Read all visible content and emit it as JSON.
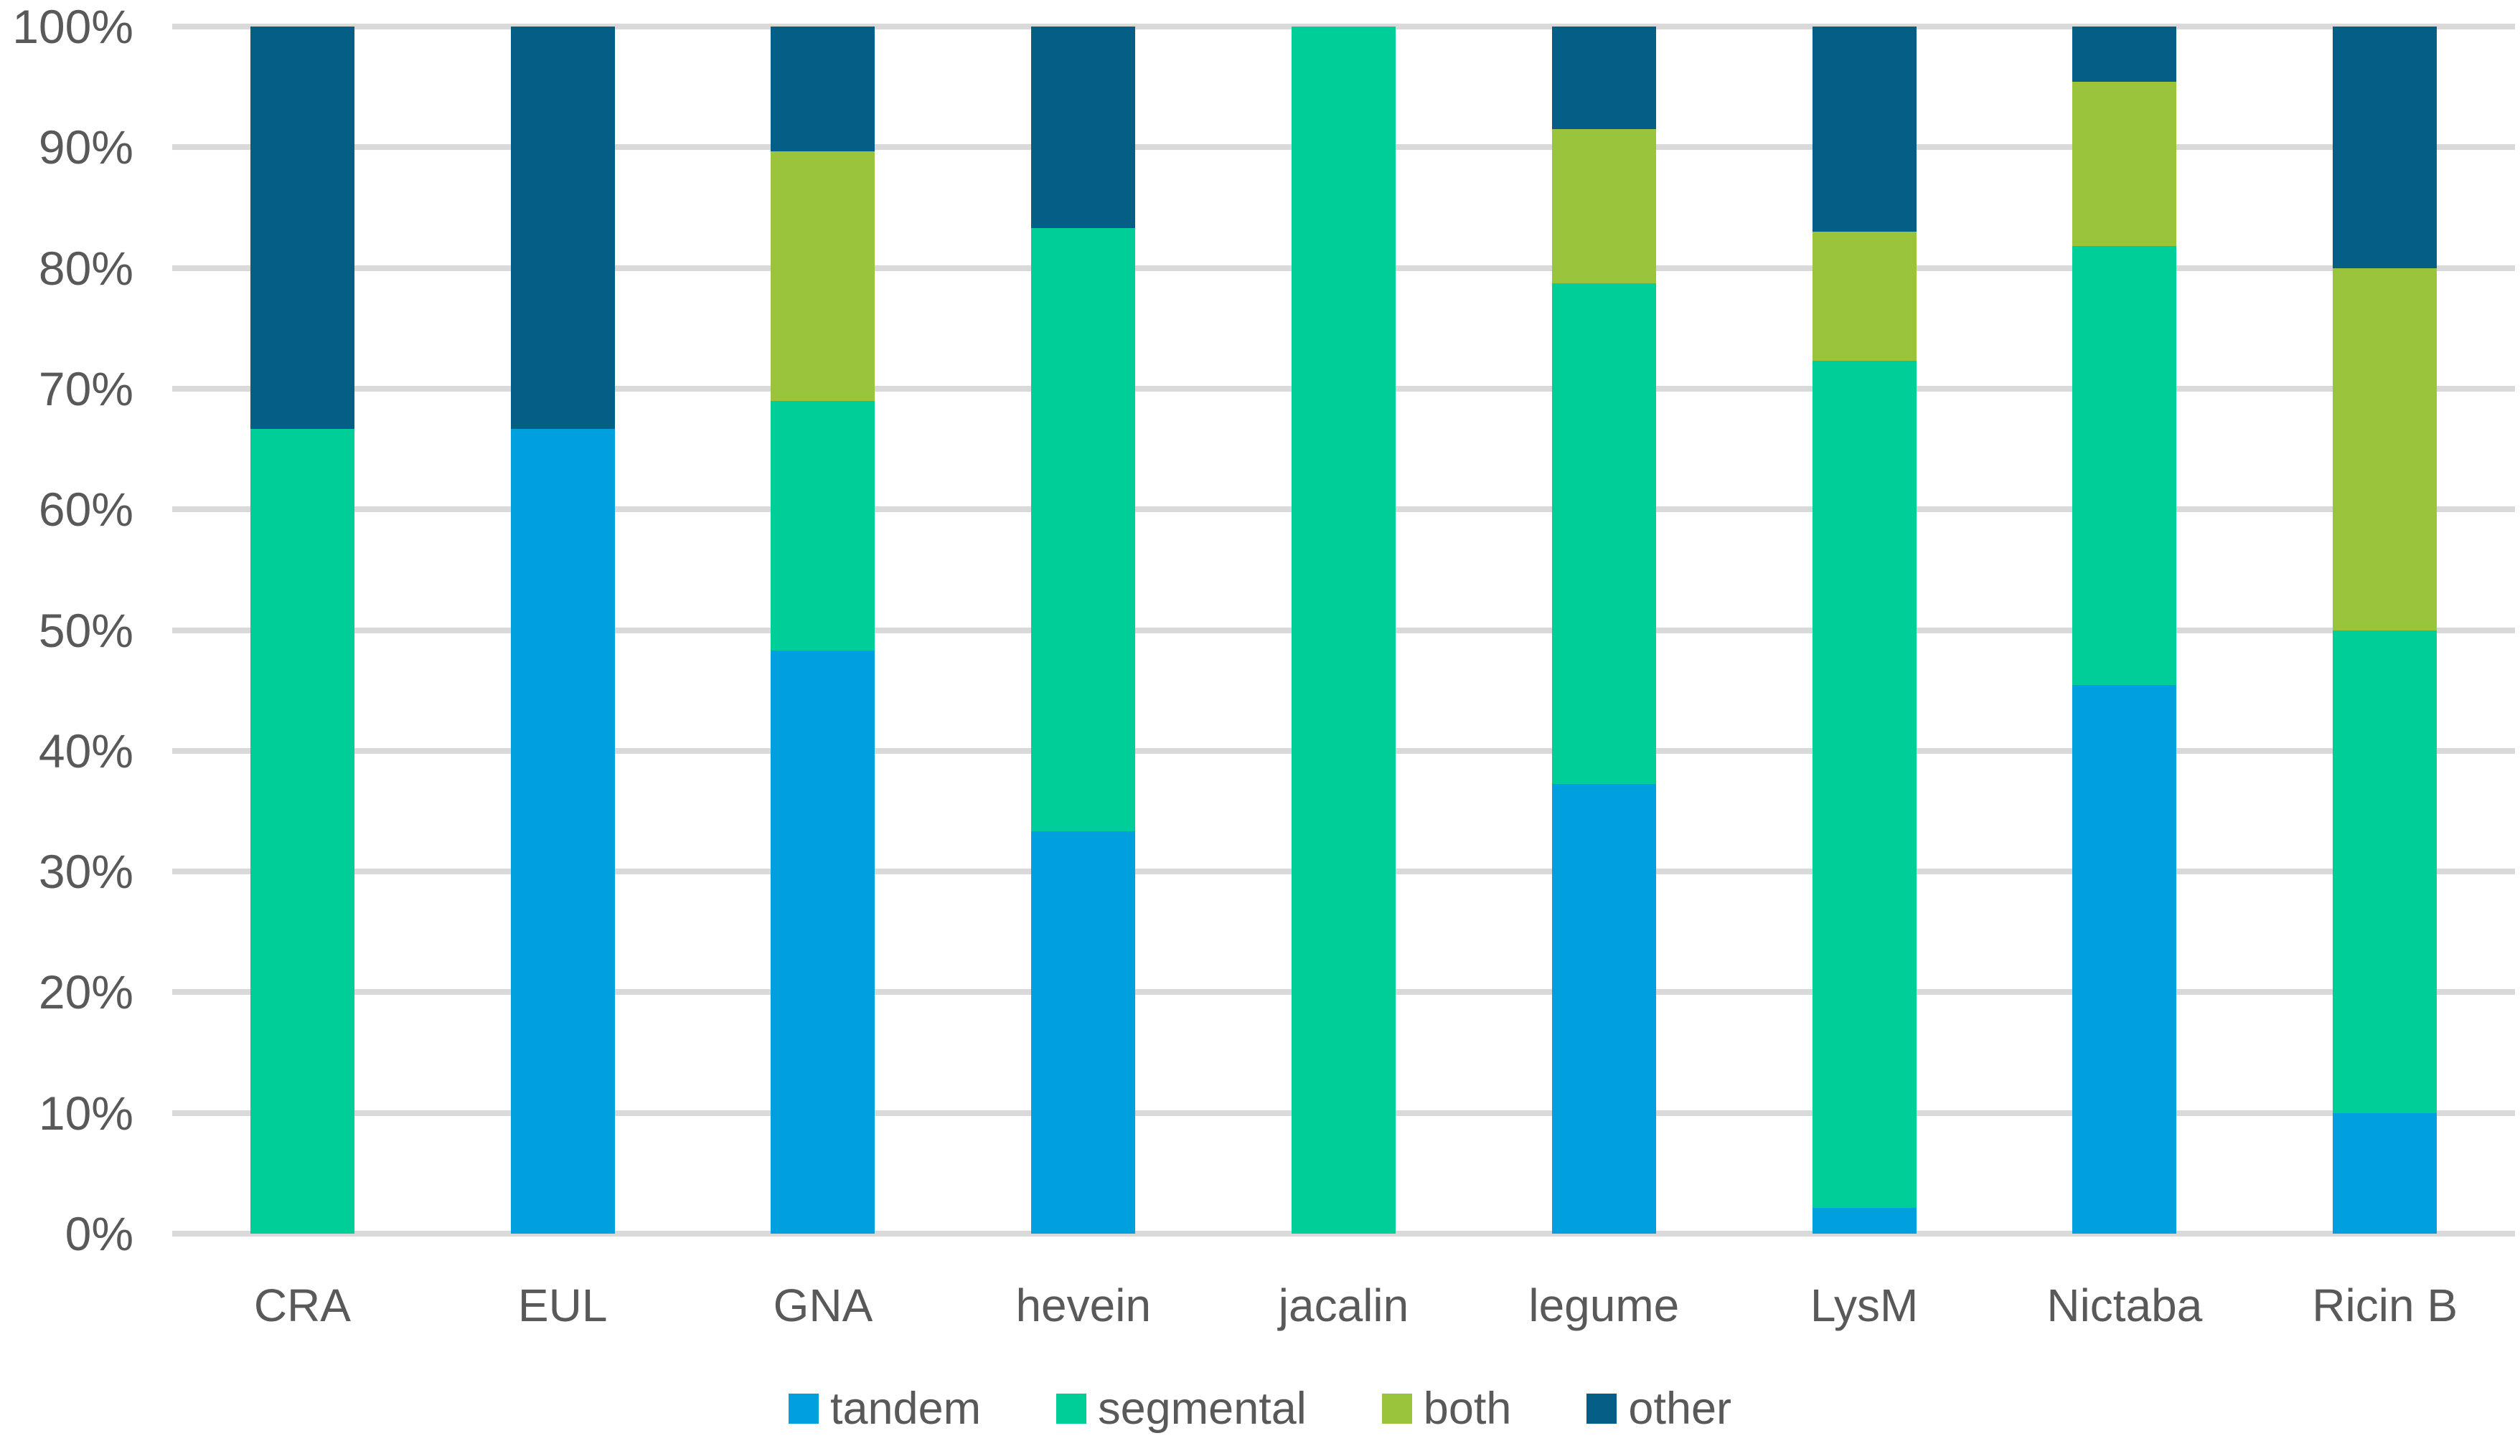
{
  "chart": {
    "background_color": "#FFFFFF",
    "gridline_color": "#D9D9D9",
    "axis_text_color": "#595959"
  },
  "chart_data": {
    "type": "bar",
    "subtype": "stacked-100-percent-column",
    "title": "",
    "xlabel": "",
    "ylabel": "",
    "grid": true,
    "ylim": [
      0,
      100
    ],
    "yticks": [
      "0%",
      "10%",
      "20%",
      "30%",
      "40%",
      "50%",
      "60%",
      "70%",
      "80%",
      "90%",
      "100%"
    ],
    "categories": [
      "CRA",
      "EUL",
      "GNA",
      "hevein",
      "jacalin",
      "legume",
      "LysM",
      "Nictaba",
      "Ricin B"
    ],
    "series": [
      {
        "name": "tandem",
        "color": "#00A0DF",
        "values": [
          0,
          66.67,
          48.28,
          33.33,
          0,
          37.23,
          2.13,
          45.45,
          10
        ]
      },
      {
        "name": "segmental",
        "color": "#00CE99",
        "values": [
          66.67,
          0,
          20.69,
          50,
          100,
          41.49,
          70.21,
          36.36,
          40
        ]
      },
      {
        "name": "both",
        "color": "#99C43C",
        "values": [
          0,
          0,
          20.69,
          0,
          0,
          12.77,
          10.64,
          13.64,
          30
        ]
      },
      {
        "name": "other",
        "color": "#055E86",
        "values": [
          33.33,
          33.33,
          10.34,
          16.67,
          0,
          8.51,
          17.02,
          4.55,
          20
        ]
      }
    ],
    "legend_position": "bottom",
    "legend_entries": [
      "tandem",
      "segmental",
      "both",
      "other"
    ]
  }
}
